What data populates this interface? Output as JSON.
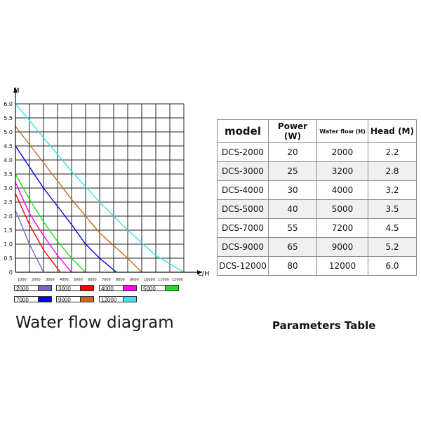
{
  "chart_data": {
    "type": "line",
    "title": "Water flow diagram",
    "xlabel": "L/H",
    "ylabel": "M",
    "xlim": [
      0,
      12000
    ],
    "ylim": [
      0,
      6.0
    ],
    "grid": true,
    "x_ticks": [
      "1000",
      "2000",
      "3000",
      "4000",
      "5000",
      "6000",
      "7000",
      "8000",
      "9000",
      "10000",
      "11000",
      "12000"
    ],
    "y_ticks": [
      "0",
      "0.5",
      "1.0",
      "1.5",
      "2.0",
      "2.5",
      "3.0",
      "3.5",
      "4.0",
      "4.5",
      "5.0",
      "5.5",
      "6.0"
    ],
    "series": [
      {
        "name": "2000",
        "color": "#7b66c0",
        "x": [
          0,
          1000,
          2000
        ],
        "y": [
          2.2,
          1.0,
          0
        ]
      },
      {
        "name": "3000",
        "color": "#ff0000",
        "x": [
          0,
          1000,
          2000,
          3200
        ],
        "y": [
          2.8,
          1.7,
          0.8,
          0
        ]
      },
      {
        "name": "4000",
        "color": "#ff00ff",
        "x": [
          0,
          1000,
          2000,
          3000,
          4000
        ],
        "y": [
          3.2,
          2.1,
          1.3,
          0.6,
          0
        ]
      },
      {
        "name": "5000",
        "color": "#22dd22",
        "x": [
          0,
          1000,
          2000,
          3000,
          4000,
          5000
        ],
        "y": [
          3.5,
          2.6,
          1.8,
          1.1,
          0.5,
          0
        ]
      },
      {
        "name": "7000",
        "color": "#0000ee",
        "x": [
          0,
          2000,
          4000,
          5000,
          6000,
          7200
        ],
        "y": [
          4.5,
          3.0,
          1.7,
          1.0,
          0.5,
          0
        ]
      },
      {
        "name": "9000",
        "color": "#c86a1c",
        "x": [
          0,
          2000,
          4000,
          6000,
          8000,
          9000
        ],
        "y": [
          5.2,
          3.9,
          2.6,
          1.4,
          0.5,
          0
        ]
      },
      {
        "name": "12000",
        "color": "#33e6e6",
        "x": [
          0,
          2000,
          4000,
          6000,
          8000,
          10000,
          12000
        ],
        "y": [
          6.0,
          4.8,
          3.6,
          2.5,
          1.5,
          0.6,
          0
        ]
      }
    ]
  },
  "legend": [
    {
      "label": "2000",
      "color": "#7b66c0"
    },
    {
      "label": "3000",
      "color": "#ff0000"
    },
    {
      "label": "4000",
      "color": "#ff00ff"
    },
    {
      "label": "5000",
      "color": "#22dd22"
    },
    {
      "label": "7000",
      "color": "#0000ee"
    },
    {
      "label": "9000",
      "color": "#c86a1c"
    },
    {
      "label": "12000",
      "color": "#33e6e6"
    }
  ],
  "table": {
    "title": "Parameters Table",
    "headers": [
      "model",
      "Power (W)",
      "Water flow (H)",
      "Head (M)"
    ],
    "rows": [
      [
        "DCS-2000",
        "20",
        "2000",
        "2.2"
      ],
      [
        "DCS-3000",
        "25",
        "3200",
        "2.8"
      ],
      [
        "DCS-4000",
        "30",
        "4000",
        "3.2"
      ],
      [
        "DCS-5000",
        "40",
        "5000",
        "3.5"
      ],
      [
        "DCS-7000",
        "55",
        "7200",
        "4.5"
      ],
      [
        "DCS-9000",
        "65",
        "9000",
        "5.2"
      ],
      [
        "DCS-12000",
        "80",
        "12000",
        "6.0"
      ]
    ]
  }
}
